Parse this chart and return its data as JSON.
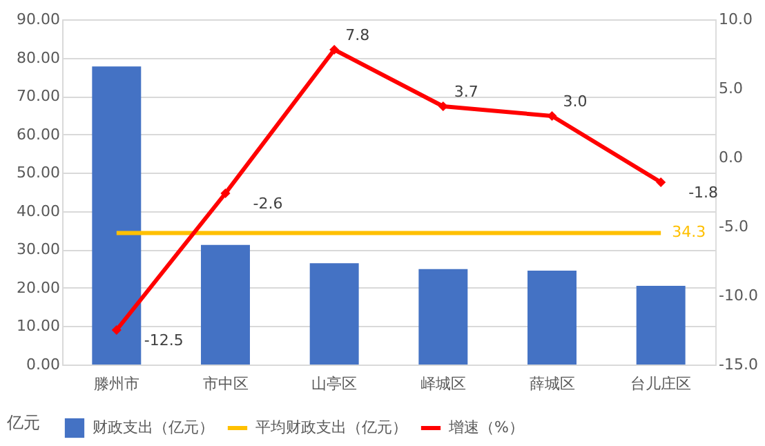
{
  "chart_data": {
    "type": "bar",
    "ylabel": "亿元",
    "categories": [
      "滕州市",
      "市中区",
      "山亭区",
      "峄城区",
      "薛城区",
      "台儿庄区"
    ],
    "series": [
      {
        "name": "财政支出（亿元）",
        "color": "#4472c4",
        "values": [
          77.7,
          31.2,
          26.4,
          24.9,
          24.5,
          20.5
        ]
      },
      {
        "name": "平均财政支出（亿元）",
        "type": "line",
        "color": "#ffc000",
        "marker": "none",
        "values": [
          34.3,
          34.3,
          34.3,
          34.3,
          34.3,
          34.3
        ],
        "value_labels": [
          null,
          null,
          null,
          null,
          null,
          "34.3"
        ]
      },
      {
        "name": "增速（%）",
        "type": "line",
        "color": "#ff0000",
        "marker": "diamond",
        "axis": "y2",
        "values": [
          -12.5,
          -2.6,
          7.8,
          3.7,
          3.0,
          -1.8
        ],
        "value_labels": [
          "-12.5",
          "-2.6",
          "7.8",
          "3.7",
          "3.0",
          "-1.8"
        ]
      }
    ],
    "ylim": [
      0,
      90
    ],
    "yticks": [
      {
        "value": 0,
        "label": "0.00"
      },
      {
        "value": 10,
        "label": "10.00"
      },
      {
        "value": 20,
        "label": "20.00"
      },
      {
        "value": 30,
        "label": "30.00"
      },
      {
        "value": 40,
        "label": "40.00"
      },
      {
        "value": 50,
        "label": "50.00"
      },
      {
        "value": 60,
        "label": "60.00"
      },
      {
        "value": 70,
        "label": "70.00"
      },
      {
        "value": 80,
        "label": "80.00"
      },
      {
        "value": 90,
        "label": "90.00"
      }
    ],
    "y2lim": [
      -15,
      10
    ],
    "y2ticks": [
      {
        "value": -15,
        "label": "-15.0"
      },
      {
        "value": -10,
        "label": "-10.0"
      },
      {
        "value": -5,
        "label": "-5.0"
      },
      {
        "value": 0,
        "label": "0.0"
      },
      {
        "value": 5,
        "label": "5.0"
      },
      {
        "value": 10,
        "label": "10.0"
      }
    ],
    "grid": "y",
    "legend": "bottom"
  }
}
